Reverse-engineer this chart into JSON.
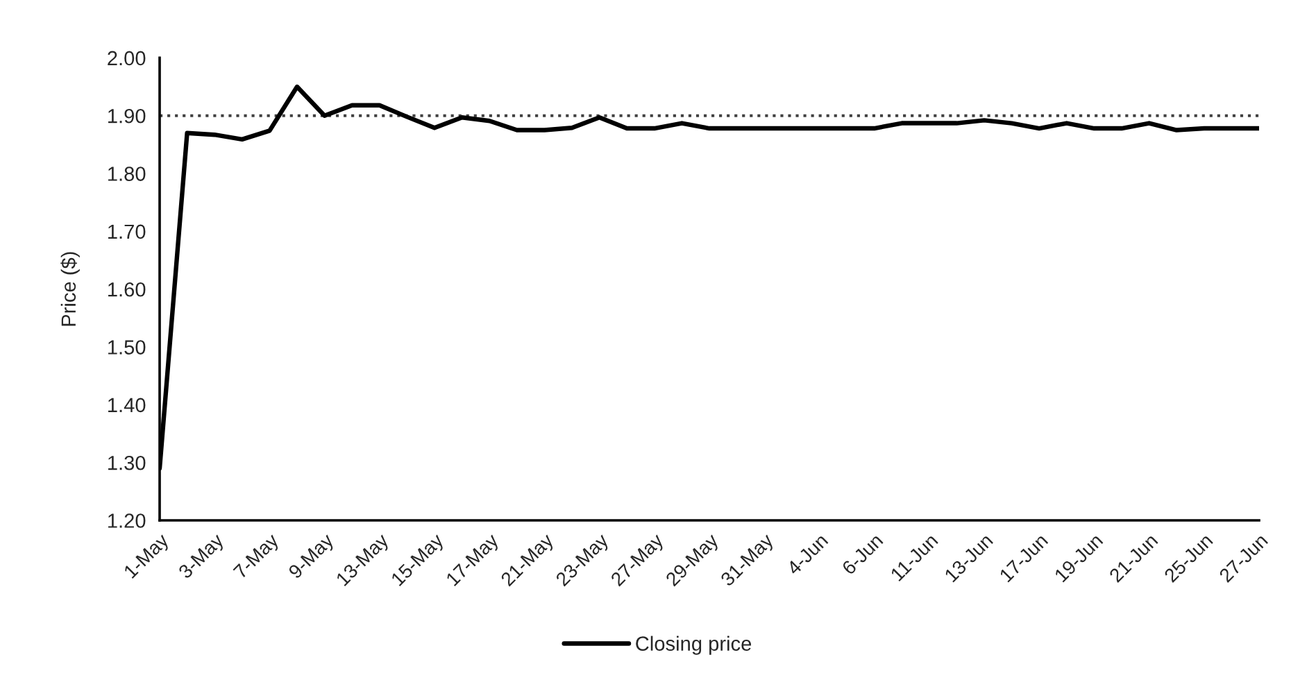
{
  "chart_data": {
    "type": "line",
    "ylabel": "Price ($)",
    "categories": [
      "1-May",
      null,
      "3-May",
      null,
      "7-May",
      null,
      "9-May",
      null,
      "13-May",
      null,
      "15-May",
      null,
      "17-May",
      null,
      "21-May",
      null,
      "23-May",
      null,
      "27-May",
      null,
      "29-May",
      null,
      "31-May",
      null,
      "4-Jun",
      null,
      "6-Jun",
      null,
      "11-Jun",
      null,
      "13-Jun",
      null,
      "17-Jun",
      null,
      "19-Jun",
      null,
      "21-Jun",
      null,
      "25-Jun",
      null,
      "27-Jun"
    ],
    "series": [
      {
        "name": "Closing price",
        "color": "#000000",
        "values": [
          1.29,
          1.87,
          1.867,
          1.859,
          1.874,
          1.95,
          1.9,
          1.918,
          1.918,
          1.898,
          1.879,
          1.897,
          1.891,
          1.875,
          1.875,
          1.879,
          1.897,
          1.878,
          1.878,
          1.887,
          1.878,
          1.878,
          1.878,
          1.878,
          1.878,
          1.878,
          1.878,
          1.887,
          1.887,
          1.887,
          1.892,
          1.887,
          1.878,
          1.887,
          1.878,
          1.878,
          1.887,
          1.875,
          1.878,
          1.878,
          1.878
        ]
      }
    ],
    "ylim": [
      1.2,
      2.0
    ],
    "yticks": [
      {
        "value": 1.2,
        "label": "1.20"
      },
      {
        "value": 1.3,
        "label": "1.30"
      },
      {
        "value": 1.4,
        "label": "1.40"
      },
      {
        "value": 1.5,
        "label": "1.50"
      },
      {
        "value": 1.6,
        "label": "1.60"
      },
      {
        "value": 1.7,
        "label": "1.70"
      },
      {
        "value": 1.8,
        "label": "1.80"
      },
      {
        "value": 1.9,
        "label": "1.90"
      },
      {
        "value": 2.0,
        "label": "2.00"
      }
    ],
    "ref_lines": [
      {
        "axis": "y",
        "value": 1.9,
        "color": "#404040",
        "line_style": "dotted"
      }
    ],
    "grid": false,
    "legend": "bottom",
    "marker": "none",
    "line_style": "solid"
  }
}
